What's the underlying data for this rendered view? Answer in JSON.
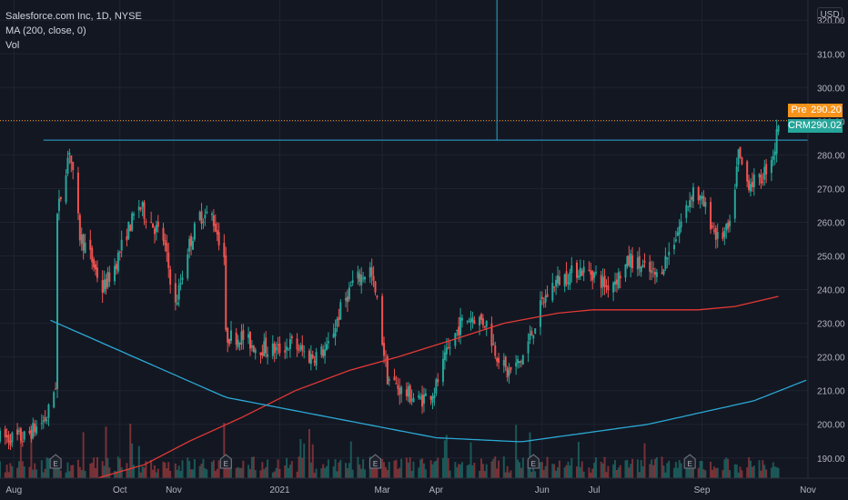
{
  "legend": {
    "symbol_line": "Salesforce.com Inc, 1D, NYSE",
    "ma_line": "MA (200, close, 0)",
    "vol_line": "Vol"
  },
  "currency": "USD",
  "tags": {
    "pre": {
      "name": "Pre",
      "value": "290.20",
      "color": "#f7931a"
    },
    "last": {
      "name": "CRM",
      "value": "290.02",
      "color": "#26a69a"
    }
  },
  "colors": {
    "background": "#131722",
    "up": "#26a69a",
    "down": "#ef5350",
    "ma": "#e53935",
    "trendline": "#2ba8d4",
    "grid": "#1f2430"
  },
  "chart_data": {
    "type": "candlestick",
    "y_axis": {
      "min": 184,
      "max": 326,
      "ticks": [
        190,
        200,
        210,
        220,
        230,
        240,
        250,
        260,
        270,
        280,
        290,
        300,
        310,
        320
      ],
      "tick_labels": [
        "190.00",
        "200.00",
        "210.00",
        "220.00",
        "230.00",
        "240.00",
        "250.00",
        "260.00",
        "270.00",
        "280.00",
        "290.00",
        "300.00",
        "310.00",
        "320.00"
      ]
    },
    "x_axis": {
      "start": "2020-07-24",
      "end": "2021-11-01",
      "ticks": [
        {
          "date": "2020-08-01",
          "label": "Aug"
        },
        {
          "date": "2020-10-01",
          "label": "Oct"
        },
        {
          "date": "2020-11-01",
          "label": "Nov"
        },
        {
          "date": "2021-01-01",
          "label": "2021"
        },
        {
          "date": "2021-03-01",
          "label": "Mar"
        },
        {
          "date": "2021-04-01",
          "label": "Apr"
        },
        {
          "date": "2021-06-01",
          "label": "Jun"
        },
        {
          "date": "2021-07-01",
          "label": "Jul"
        },
        {
          "date": "2021-09-01",
          "label": "Sep"
        },
        {
          "date": "2021-11-01",
          "label": "Nov"
        }
      ]
    },
    "price_path": [
      [
        "2020-07-24",
        196
      ],
      [
        "2020-08-07",
        196
      ],
      [
        "2020-08-20",
        202
      ],
      [
        "2020-08-25",
        212
      ],
      [
        "2020-08-26",
        262
      ],
      [
        "2020-08-28",
        268
      ],
      [
        "2020-09-02",
        282
      ],
      [
        "2020-09-08",
        256
      ],
      [
        "2020-09-14",
        250
      ],
      [
        "2020-09-21",
        240
      ],
      [
        "2020-09-28",
        247
      ],
      [
        "2020-10-05",
        257
      ],
      [
        "2020-10-12",
        265
      ],
      [
        "2020-10-19",
        260
      ],
      [
        "2020-10-26",
        255
      ],
      [
        "2020-11-02",
        235
      ],
      [
        "2020-11-09",
        252
      ],
      [
        "2020-11-16",
        262
      ],
      [
        "2020-11-23",
        262
      ],
      [
        "2020-11-30",
        250
      ],
      [
        "2020-12-01",
        226
      ],
      [
        "2020-12-10",
        226
      ],
      [
        "2020-12-18",
        223
      ],
      [
        "2020-12-31",
        222
      ],
      [
        "2021-01-08",
        224
      ],
      [
        "2021-01-18",
        220
      ],
      [
        "2021-01-28",
        222
      ],
      [
        "2021-02-05",
        234
      ],
      [
        "2021-02-12",
        242
      ],
      [
        "2021-02-22",
        246
      ],
      [
        "2021-02-26",
        236
      ],
      [
        "2021-03-04",
        214
      ],
      [
        "2021-03-12",
        210
      ],
      [
        "2021-03-22",
        207
      ],
      [
        "2021-03-31",
        210
      ],
      [
        "2021-04-08",
        222
      ],
      [
        "2021-04-15",
        230
      ],
      [
        "2021-04-22",
        232
      ],
      [
        "2021-04-30",
        230
      ],
      [
        "2021-05-05",
        222
      ],
      [
        "2021-05-12",
        215
      ],
      [
        "2021-05-20",
        219
      ],
      [
        "2021-05-26",
        227
      ],
      [
        "2021-06-01",
        236
      ],
      [
        "2021-06-08",
        242
      ],
      [
        "2021-06-15",
        244
      ],
      [
        "2021-06-22",
        246
      ],
      [
        "2021-06-30",
        245
      ],
      [
        "2021-07-08",
        241
      ],
      [
        "2021-07-15",
        244
      ],
      [
        "2021-07-22",
        249
      ],
      [
        "2021-07-30",
        246
      ],
      [
        "2021-08-06",
        244
      ],
      [
        "2021-08-13",
        251
      ],
      [
        "2021-08-20",
        260
      ],
      [
        "2021-08-27",
        270
      ],
      [
        "2021-09-03",
        264
      ],
      [
        "2021-09-10",
        255
      ],
      [
        "2021-09-17",
        258
      ],
      [
        "2021-09-22",
        280
      ],
      [
        "2021-09-27",
        272
      ],
      [
        "2021-10-04",
        272
      ],
      [
        "2021-10-08",
        276
      ],
      [
        "2021-10-13",
        282
      ],
      [
        "2021-10-15",
        290
      ]
    ],
    "ma200_path": [
      [
        "2020-09-18",
        184
      ],
      [
        "2020-10-15",
        188
      ],
      [
        "2020-11-10",
        195
      ],
      [
        "2020-12-10",
        202
      ],
      [
        "2021-01-10",
        210
      ],
      [
        "2021-02-10",
        216
      ],
      [
        "2021-03-10",
        220
      ],
      [
        "2021-04-10",
        225
      ],
      [
        "2021-05-10",
        230
      ],
      [
        "2021-06-10",
        233
      ],
      [
        "2021-06-30",
        234
      ],
      [
        "2021-07-30",
        234
      ],
      [
        "2021-08-30",
        234
      ],
      [
        "2021-09-20",
        235
      ],
      [
        "2021-10-15",
        238
      ]
    ],
    "horizontal_line": {
      "price": 284.4,
      "from": "2020-08-18",
      "to": "2021-11-01",
      "color": "#2ba8d4"
    },
    "vertical_line": {
      "date": "2021-05-06",
      "from_price": 326,
      "to_price": 284.4,
      "color": "#2ba8d4"
    },
    "arc": [
      [
        "2020-08-22",
        230.9
      ],
      [
        "2020-12-01",
        208
      ],
      [
        "2021-04-01",
        196
      ],
      [
        "2021-05-20",
        194.8
      ],
      [
        "2021-08-01",
        200
      ],
      [
        "2021-10-01",
        207
      ],
      [
        "2021-11-01",
        213.3
      ]
    ],
    "price_lines": [
      290.2,
      290.02
    ],
    "earnings_markers": [
      "2020-08-25",
      "2020-12-01",
      "2021-02-25",
      "2021-05-27",
      "2021-08-25"
    ],
    "volume": {
      "show": true
    }
  }
}
